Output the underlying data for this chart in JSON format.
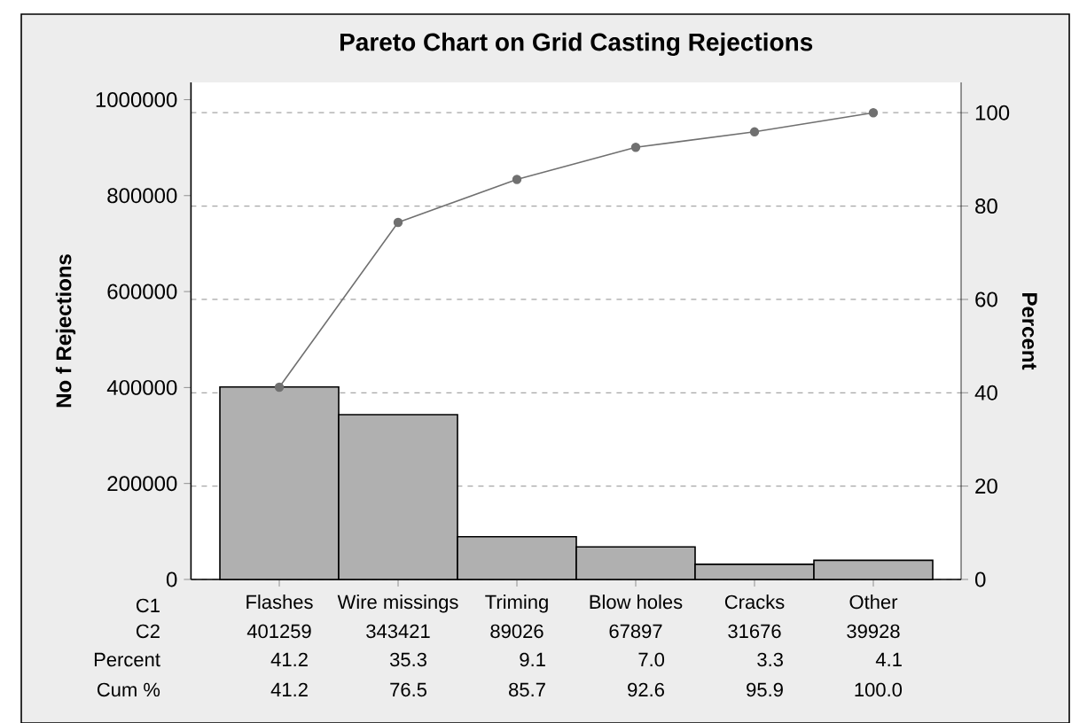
{
  "chart_data": {
    "type": "bar",
    "title": "Pareto Chart on Grid Casting Rejections",
    "ylabel": "No f Rejections",
    "y2label": "Percent",
    "categories": [
      "Flashes",
      "Wire missings",
      "Triming",
      "Blow holes",
      "Cracks",
      "Other"
    ],
    "series": [
      {
        "color": "#b0b0b0",
        "values": [
          401259,
          343421,
          89026,
          67897,
          31676,
          39928
        ],
        "value_labels": [
          "401259",
          "343421",
          "89026",
          "67897",
          "31676",
          "39928"
        ]
      },
      {
        "type": "line",
        "axis": "y2",
        "color": "#707070",
        "marker": "circle",
        "values": [
          41.2,
          76.5,
          85.7,
          92.6,
          95.9,
          100.0
        ],
        "value_labels": [
          "41.2",
          "76.5",
          "85.7",
          "92.6",
          "95.9",
          "100.0"
        ]
      }
    ],
    "ylim": [
      0,
      1036000
    ],
    "yticks": [
      0,
      200000,
      400000,
      600000,
      800000,
      1000000
    ],
    "y2lim": [
      0,
      106.5
    ],
    "y2ticks": [
      0,
      20,
      40,
      60,
      80,
      100
    ],
    "grid": "y2",
    "annotations": [
      "C1",
      "C2",
      "Percent",
      "Cum %",
      "41.2",
      "35.3",
      "9.1",
      "7.0",
      "3.3",
      "4.1"
    ]
  }
}
